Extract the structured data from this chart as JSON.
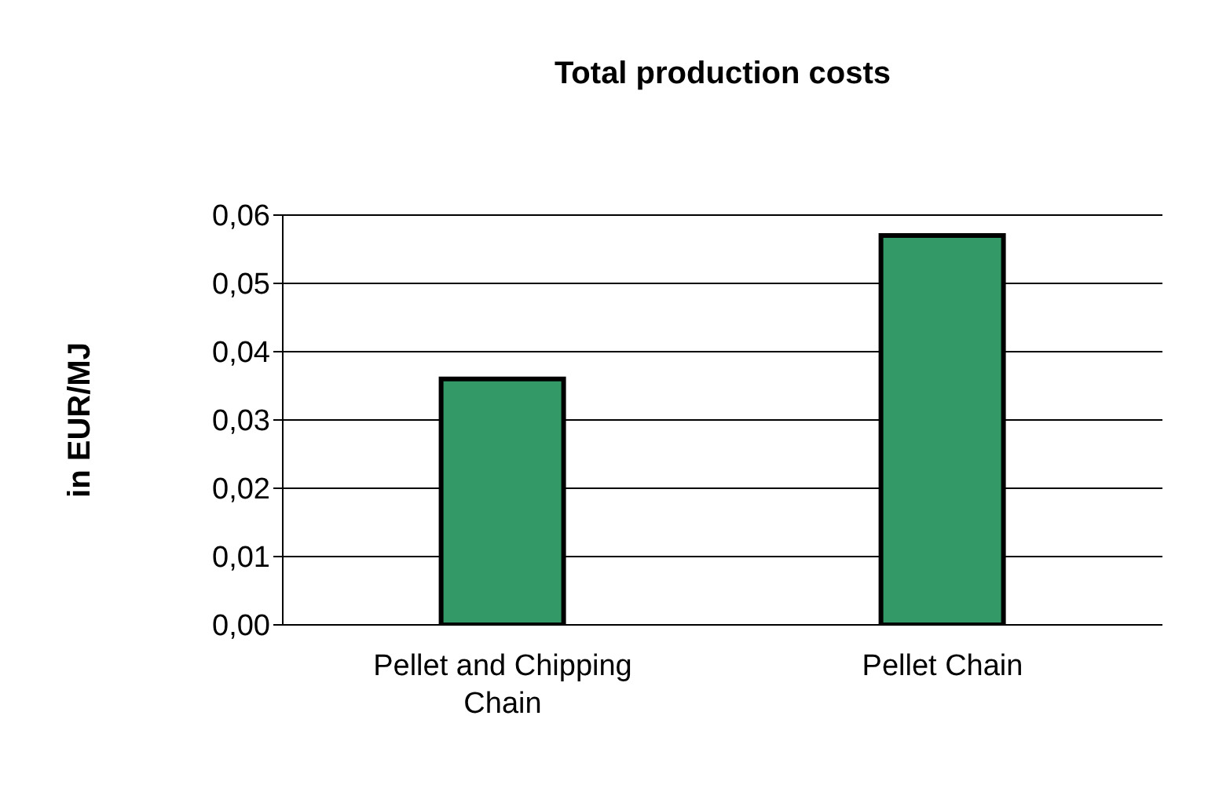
{
  "chart_data": {
    "type": "bar",
    "title": "Total production costs",
    "ylabel": "in EUR/MJ",
    "categories": [
      "Pellet and Chipping Chain",
      "Pellet Chain"
    ],
    "values": [
      0.036,
      0.057
    ],
    "color": "#339966",
    "ylim": [
      0,
      0.06
    ],
    "yticks": [
      {
        "value": 0,
        "label": "0,00"
      },
      {
        "value": 0.01,
        "label": "0,01"
      },
      {
        "value": 0.02,
        "label": "0,02"
      },
      {
        "value": 0.03,
        "label": "0,03"
      },
      {
        "value": 0.04,
        "label": "0,04"
      },
      {
        "value": 0.05,
        "label": "0,05"
      },
      {
        "value": 0.06,
        "label": "0,06"
      }
    ],
    "grid": "y",
    "legend": false
  }
}
